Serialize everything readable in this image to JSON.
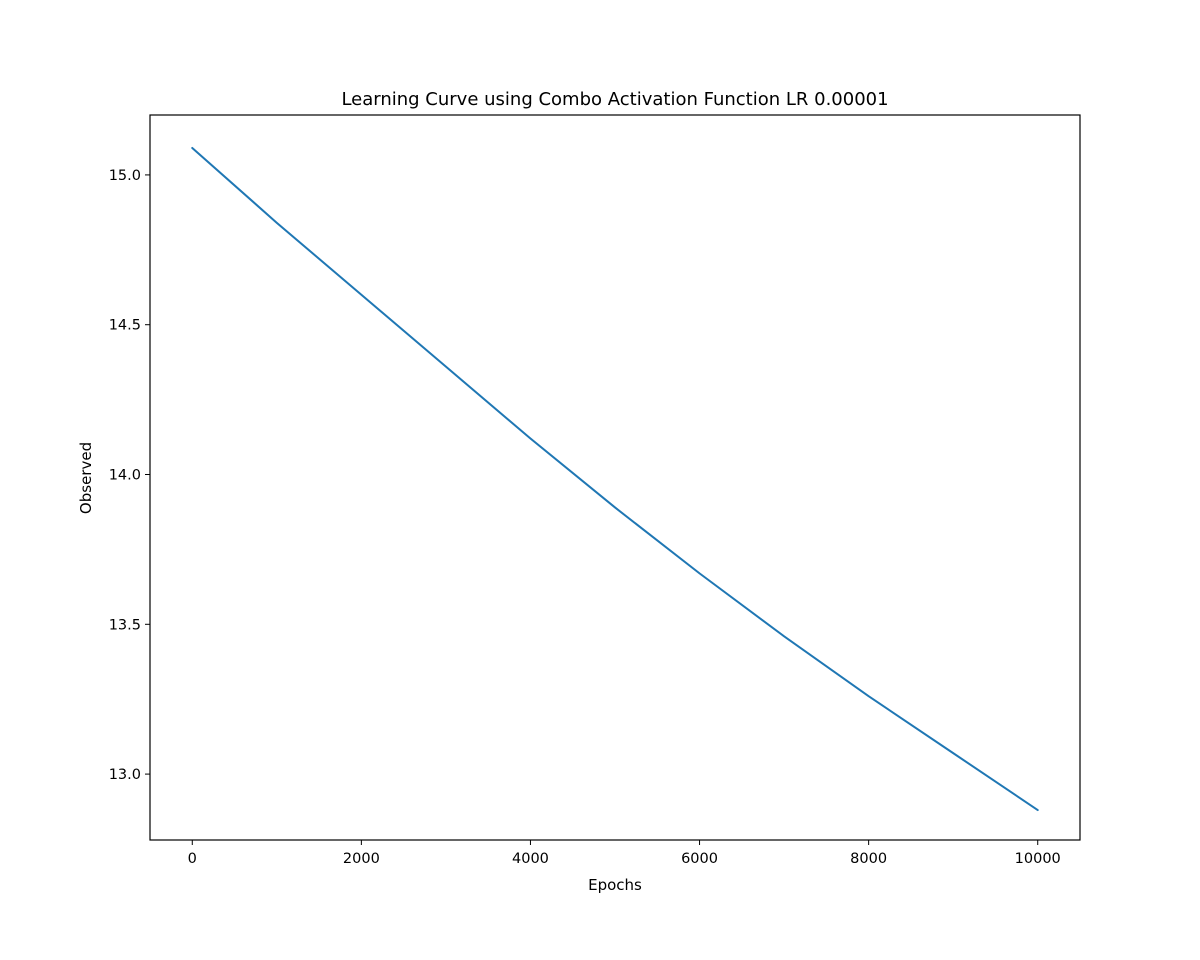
{
  "chart_data": {
    "type": "line",
    "title": "Learning Curve using Combo Activation Function LR 0.00001",
    "xlabel": "Epochs",
    "ylabel": "Observed",
    "xlim": [
      -500,
      10500
    ],
    "ylim": [
      12.78,
      15.2
    ],
    "xticks": [
      0,
      2000,
      4000,
      6000,
      8000,
      10000
    ],
    "xtick_labels": [
      "0",
      "2000",
      "4000",
      "6000",
      "8000",
      "10000"
    ],
    "yticks": [
      13.0,
      13.5,
      14.0,
      14.5,
      15.0
    ],
    "ytick_labels": [
      "13.0",
      "13.5",
      "14.0",
      "14.5",
      "15.0"
    ],
    "grid": false,
    "series": [
      {
        "color": "#1f77b4",
        "x": [
          0,
          1000,
          2000,
          3000,
          4000,
          5000,
          6000,
          7000,
          8000,
          9000,
          10000
        ],
        "y": [
          15.09,
          14.84,
          14.6,
          14.36,
          14.12,
          13.89,
          13.67,
          13.46,
          13.26,
          13.07,
          12.88
        ]
      }
    ]
  }
}
